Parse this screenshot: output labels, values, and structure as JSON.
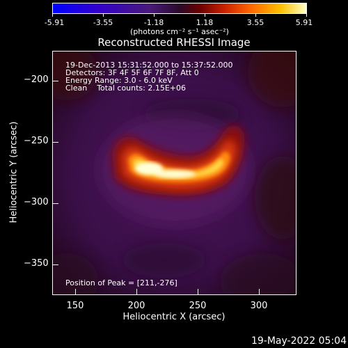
{
  "colorbar": {
    "ticks": [
      "-5.91",
      "-3.55",
      "-1.18",
      "1.18",
      "3.55",
      "5.91"
    ],
    "unit": "(photons cm⁻² s⁻¹ asec⁻²)"
  },
  "title": "Reconstructed RHESSI Image",
  "info": {
    "time": "19-Dec-2013 15:31:52.000 to 15:37:52.000",
    "detectors": "Detectors: 3F 4F 5F 6F 7F 8F, Att 0",
    "energy": "Energy Range: 3.0 - 6.0 keV",
    "clean": "Clean    Total counts: 2.15E+06"
  },
  "peak": "Position of Peak = [211,-276]",
  "axes": {
    "xlabel": "Heliocentric X (arcsec)",
    "ylabel": "Heliocentric Y (arcsec)",
    "xticks": [
      "150",
      "200",
      "250",
      "300"
    ],
    "yticks": [
      "−200",
      "−250",
      "−300",
      "−350"
    ]
  },
  "datestamp": "19-May-2022 05:04"
}
